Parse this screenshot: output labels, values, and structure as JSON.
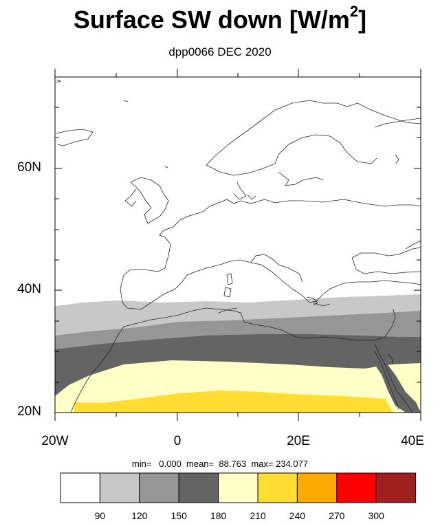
{
  "header": {
    "title": "Surface SW down [W/m",
    "title_sup": "2",
    "title_close": "]",
    "subtitle": "dpp0066 DEC 2020"
  },
  "map": {
    "region": "Europe / North Africa",
    "lat_labels": [
      "60N",
      "40N",
      "20N"
    ],
    "lon_labels": [
      "20W",
      "0",
      "20E",
      "40E"
    ],
    "lat_range": [
      20,
      75
    ],
    "lon_range": [
      -20,
      40
    ]
  },
  "stats": {
    "text": "min=   0.000  mean=  88.763  max= 234.077"
  },
  "colorbar": {
    "labels": [
      "90",
      "120",
      "150",
      "180",
      "210",
      "240",
      "270",
      "300"
    ],
    "colors": [
      "#ffffff",
      "#c8c8c8",
      "#969696",
      "#646464",
      "#ffffc8",
      "#ffdd33",
      "#ffaa00",
      "#ff0000",
      "#a02020"
    ]
  }
}
